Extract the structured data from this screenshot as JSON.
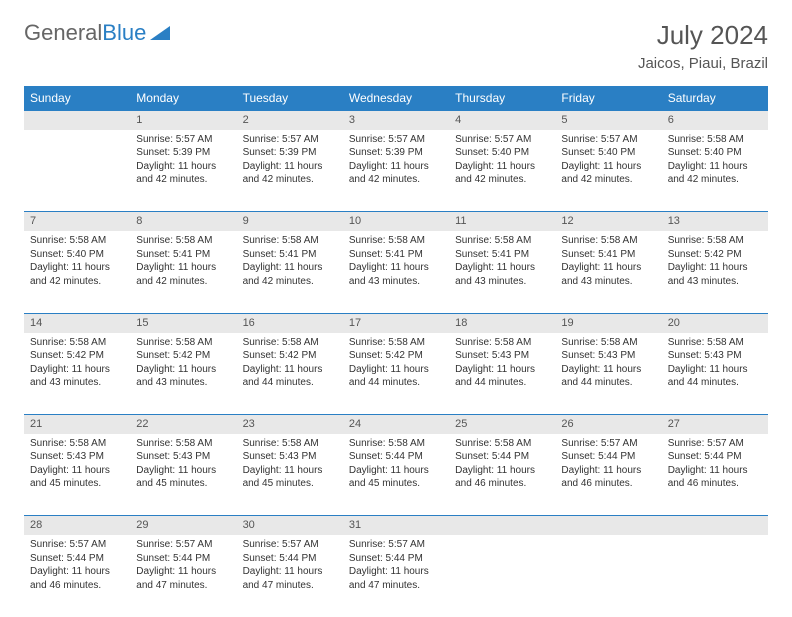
{
  "logo": {
    "part1": "General",
    "part2": "Blue"
  },
  "title": "July 2024",
  "location": "Jaicos, Piaui, Brazil",
  "colors": {
    "header_bg": "#2a7fc4",
    "header_fg": "#ffffff",
    "daynum_bg": "#e8e8e8",
    "border": "#2a7fc4",
    "text": "#333333",
    "title_fg": "#555555"
  },
  "day_headers": [
    "Sunday",
    "Monday",
    "Tuesday",
    "Wednesday",
    "Thursday",
    "Friday",
    "Saturday"
  ],
  "weeks": [
    {
      "nums": [
        "",
        "1",
        "2",
        "3",
        "4",
        "5",
        "6"
      ],
      "cells": [
        null,
        {
          "sunrise": "Sunrise: 5:57 AM",
          "sunset": "Sunset: 5:39 PM",
          "daylight": "Daylight: 11 hours and 42 minutes."
        },
        {
          "sunrise": "Sunrise: 5:57 AM",
          "sunset": "Sunset: 5:39 PM",
          "daylight": "Daylight: 11 hours and 42 minutes."
        },
        {
          "sunrise": "Sunrise: 5:57 AM",
          "sunset": "Sunset: 5:39 PM",
          "daylight": "Daylight: 11 hours and 42 minutes."
        },
        {
          "sunrise": "Sunrise: 5:57 AM",
          "sunset": "Sunset: 5:40 PM",
          "daylight": "Daylight: 11 hours and 42 minutes."
        },
        {
          "sunrise": "Sunrise: 5:57 AM",
          "sunset": "Sunset: 5:40 PM",
          "daylight": "Daylight: 11 hours and 42 minutes."
        },
        {
          "sunrise": "Sunrise: 5:58 AM",
          "sunset": "Sunset: 5:40 PM",
          "daylight": "Daylight: 11 hours and 42 minutes."
        }
      ]
    },
    {
      "nums": [
        "7",
        "8",
        "9",
        "10",
        "11",
        "12",
        "13"
      ],
      "cells": [
        {
          "sunrise": "Sunrise: 5:58 AM",
          "sunset": "Sunset: 5:40 PM",
          "daylight": "Daylight: 11 hours and 42 minutes."
        },
        {
          "sunrise": "Sunrise: 5:58 AM",
          "sunset": "Sunset: 5:41 PM",
          "daylight": "Daylight: 11 hours and 42 minutes."
        },
        {
          "sunrise": "Sunrise: 5:58 AM",
          "sunset": "Sunset: 5:41 PM",
          "daylight": "Daylight: 11 hours and 42 minutes."
        },
        {
          "sunrise": "Sunrise: 5:58 AM",
          "sunset": "Sunset: 5:41 PM",
          "daylight": "Daylight: 11 hours and 43 minutes."
        },
        {
          "sunrise": "Sunrise: 5:58 AM",
          "sunset": "Sunset: 5:41 PM",
          "daylight": "Daylight: 11 hours and 43 minutes."
        },
        {
          "sunrise": "Sunrise: 5:58 AM",
          "sunset": "Sunset: 5:41 PM",
          "daylight": "Daylight: 11 hours and 43 minutes."
        },
        {
          "sunrise": "Sunrise: 5:58 AM",
          "sunset": "Sunset: 5:42 PM",
          "daylight": "Daylight: 11 hours and 43 minutes."
        }
      ]
    },
    {
      "nums": [
        "14",
        "15",
        "16",
        "17",
        "18",
        "19",
        "20"
      ],
      "cells": [
        {
          "sunrise": "Sunrise: 5:58 AM",
          "sunset": "Sunset: 5:42 PM",
          "daylight": "Daylight: 11 hours and 43 minutes."
        },
        {
          "sunrise": "Sunrise: 5:58 AM",
          "sunset": "Sunset: 5:42 PM",
          "daylight": "Daylight: 11 hours and 43 minutes."
        },
        {
          "sunrise": "Sunrise: 5:58 AM",
          "sunset": "Sunset: 5:42 PM",
          "daylight": "Daylight: 11 hours and 44 minutes."
        },
        {
          "sunrise": "Sunrise: 5:58 AM",
          "sunset": "Sunset: 5:42 PM",
          "daylight": "Daylight: 11 hours and 44 minutes."
        },
        {
          "sunrise": "Sunrise: 5:58 AM",
          "sunset": "Sunset: 5:43 PM",
          "daylight": "Daylight: 11 hours and 44 minutes."
        },
        {
          "sunrise": "Sunrise: 5:58 AM",
          "sunset": "Sunset: 5:43 PM",
          "daylight": "Daylight: 11 hours and 44 minutes."
        },
        {
          "sunrise": "Sunrise: 5:58 AM",
          "sunset": "Sunset: 5:43 PM",
          "daylight": "Daylight: 11 hours and 44 minutes."
        }
      ]
    },
    {
      "nums": [
        "21",
        "22",
        "23",
        "24",
        "25",
        "26",
        "27"
      ],
      "cells": [
        {
          "sunrise": "Sunrise: 5:58 AM",
          "sunset": "Sunset: 5:43 PM",
          "daylight": "Daylight: 11 hours and 45 minutes."
        },
        {
          "sunrise": "Sunrise: 5:58 AM",
          "sunset": "Sunset: 5:43 PM",
          "daylight": "Daylight: 11 hours and 45 minutes."
        },
        {
          "sunrise": "Sunrise: 5:58 AM",
          "sunset": "Sunset: 5:43 PM",
          "daylight": "Daylight: 11 hours and 45 minutes."
        },
        {
          "sunrise": "Sunrise: 5:58 AM",
          "sunset": "Sunset: 5:44 PM",
          "daylight": "Daylight: 11 hours and 45 minutes."
        },
        {
          "sunrise": "Sunrise: 5:58 AM",
          "sunset": "Sunset: 5:44 PM",
          "daylight": "Daylight: 11 hours and 46 minutes."
        },
        {
          "sunrise": "Sunrise: 5:57 AM",
          "sunset": "Sunset: 5:44 PM",
          "daylight": "Daylight: 11 hours and 46 minutes."
        },
        {
          "sunrise": "Sunrise: 5:57 AM",
          "sunset": "Sunset: 5:44 PM",
          "daylight": "Daylight: 11 hours and 46 minutes."
        }
      ]
    },
    {
      "nums": [
        "28",
        "29",
        "30",
        "31",
        "",
        "",
        ""
      ],
      "cells": [
        {
          "sunrise": "Sunrise: 5:57 AM",
          "sunset": "Sunset: 5:44 PM",
          "daylight": "Daylight: 11 hours and 46 minutes."
        },
        {
          "sunrise": "Sunrise: 5:57 AM",
          "sunset": "Sunset: 5:44 PM",
          "daylight": "Daylight: 11 hours and 47 minutes."
        },
        {
          "sunrise": "Sunrise: 5:57 AM",
          "sunset": "Sunset: 5:44 PM",
          "daylight": "Daylight: 11 hours and 47 minutes."
        },
        {
          "sunrise": "Sunrise: 5:57 AM",
          "sunset": "Sunset: 5:44 PM",
          "daylight": "Daylight: 11 hours and 47 minutes."
        },
        null,
        null,
        null
      ]
    }
  ]
}
